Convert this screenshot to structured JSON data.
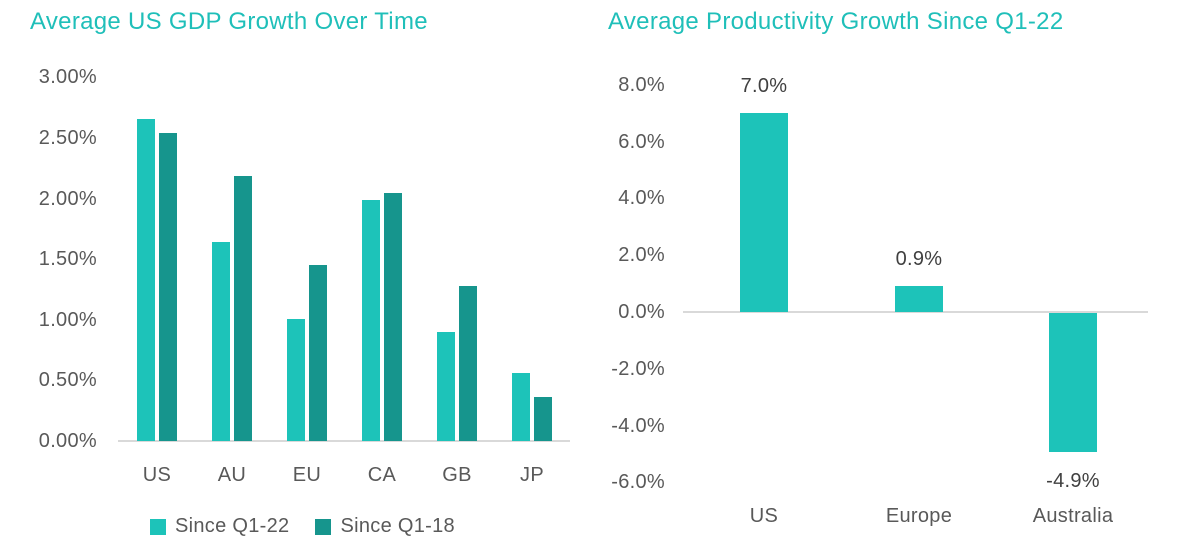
{
  "colors": {
    "title": "#1FBFB9",
    "bar_light": "#1DC3B9",
    "bar_dark": "#16958D",
    "axis_line": "#D9D9D9",
    "axis_text": "#595959",
    "value_text": "#404040"
  },
  "chart_data": [
    {
      "type": "bar",
      "title": "Average US GDP Growth Over Time",
      "categories": [
        "US",
        "AU",
        "EU",
        "CA",
        "GB",
        "JP"
      ],
      "series": [
        {
          "name": "Since Q1-22",
          "color_key": "bar_light",
          "values": [
            2.66,
            1.64,
            1.01,
            1.99,
            0.9,
            0.56
          ]
        },
        {
          "name": "Since Q1-18",
          "color_key": "bar_dark",
          "values": [
            2.54,
            2.19,
            1.45,
            2.05,
            1.28,
            0.36
          ]
        }
      ],
      "ylim": [
        0,
        3
      ],
      "yticks": [
        "3.00%",
        "2.50%",
        "2.00%",
        "1.50%",
        "1.00%",
        "0.50%",
        "0.00%"
      ],
      "grid": false,
      "legend_position": "bottom"
    },
    {
      "type": "bar",
      "title": "Average Productivity Growth Since Q1-22",
      "categories": [
        "US",
        "Europe",
        "Australia"
      ],
      "values": [
        7.0,
        0.9,
        -4.9
      ],
      "data_labels": [
        "7.0%",
        "0.9%",
        "-4.9%"
      ],
      "ylim": [
        -6,
        8
      ],
      "yticks": [
        "8.0%",
        "6.0%",
        "4.0%",
        "2.0%",
        "0.0%",
        "-2.0%",
        "-4.0%",
        "-6.0%"
      ],
      "grid": false,
      "legend_position": "none"
    }
  ]
}
